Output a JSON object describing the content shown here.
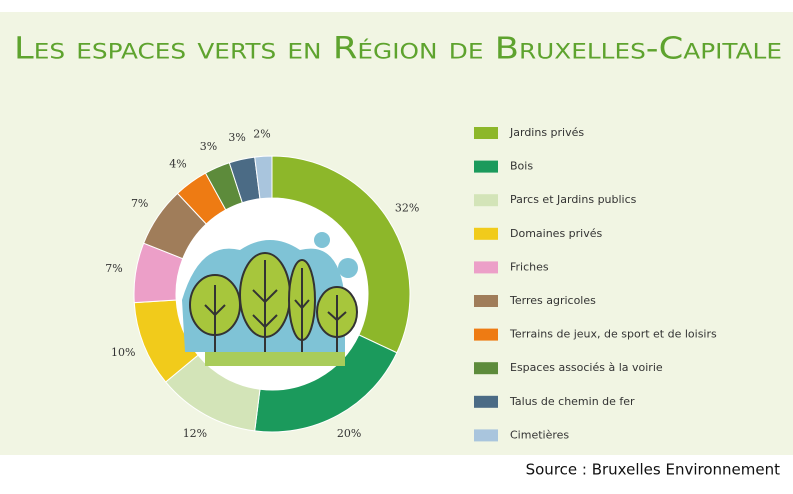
{
  "chart_data": {
    "type": "donut",
    "title": "Les espaces verts en Région de Bruxelles-Capitale",
    "categories": [
      "Jardins privés",
      "Bois",
      "Parcs et Jardins publics",
      "Domaines privés",
      "Friches",
      "Terres agricoles",
      "Terrains de jeux, de sport et de loisirs",
      "Espaces associés à la voirie",
      "Talus de chemin de fer",
      "Cimetières"
    ],
    "values": [
      32,
      20,
      12,
      10,
      7,
      7,
      4,
      3,
      3,
      2
    ],
    "value_labels": [
      "32%",
      "20%",
      "12%",
      "10%",
      "7%",
      "7%",
      "4%",
      "3%",
      "3%",
      "2%"
    ],
    "colors": [
      "#8db72a",
      "#1b9a5c",
      "#d3e4b8",
      "#f1cb1b",
      "#ec9fc8",
      "#a07d5a",
      "#ee7b13",
      "#5d8b3b",
      "#4b6b85",
      "#a9c5dd"
    ],
    "legend": "right",
    "source": "Source : Bruxelles Environnement"
  }
}
